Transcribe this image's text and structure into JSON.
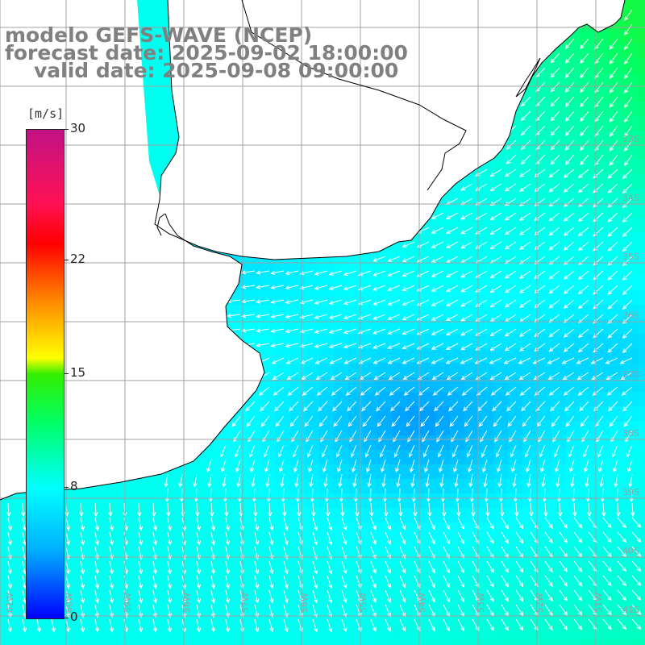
{
  "title": {
    "model": "modelo GEFS-WAVE (NCEP)",
    "forecast": "forecast date: 2025-09-02 18:00:00",
    "valid": "valid date: 2025-09-08 09:00:00"
  },
  "colorbar": {
    "unit": "[m/s]",
    "min": 0,
    "max": 30,
    "ticks": [
      {
        "value": 30,
        "label": "30"
      },
      {
        "value": 22,
        "label": "22"
      },
      {
        "value": 15,
        "label": "15"
      },
      {
        "value": 8,
        "label": "8"
      },
      {
        "value": 0,
        "label": "0"
      }
    ],
    "colors": [
      "#0000ff",
      "#00b0ff",
      "#00ffff",
      "#00ff66",
      "#33ee00",
      "#ffff00",
      "#ff8800",
      "#ff0000",
      "#c21285"
    ]
  },
  "map": {
    "lon_labels": [
      "61W",
      "60W",
      "59W",
      "58W",
      "57W",
      "56W",
      "55W",
      "54W",
      "53W",
      "52W",
      "51W"
    ],
    "lat_labels": [
      "33S",
      "34S",
      "35S",
      "36S",
      "37S",
      "38S",
      "39S",
      "40S",
      "41S"
    ],
    "land_color": "#ffffff",
    "grid_color": "#a0a0a0",
    "arrow_color": "#ffffff",
    "coast_color": "#000000"
  }
}
